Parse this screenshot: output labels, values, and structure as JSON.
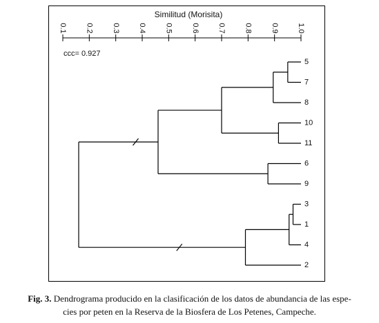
{
  "figure": {
    "axis_title": "Similitud (Morisita)",
    "ticks": [
      "0.1",
      "0.2",
      "0.3",
      "0.4",
      "0.5",
      "0.6",
      "0.7",
      "0.8",
      "0.9",
      "1.0"
    ],
    "ccc_label": "ccc= 0.927",
    "caption": {
      "label": "Fig. 3.",
      "line1": "Dendrograma producido en la clasificación de los datos de abundancia de las espe-",
      "line2": "cies por peten en la Reserva de la Biosfera de Los Petenes, Campeche."
    }
  },
  "chart_data": {
    "type": "dendrogram",
    "axis_label": "Similitud (Morisita)",
    "axis_range": [
      0.1,
      1.0
    ],
    "ccc": 0.927,
    "leaves": [
      "5",
      "7",
      "8",
      "10",
      "11",
      "6",
      "9",
      "3",
      "1",
      "4",
      "2"
    ],
    "merges": [
      {
        "id": "a",
        "children": [
          "5",
          "7"
        ],
        "similarity": 0.95
      },
      {
        "id": "b",
        "children": [
          "a",
          "8"
        ],
        "similarity": 0.895
      },
      {
        "id": "c",
        "children": [
          "10",
          "11"
        ],
        "similarity": 0.915
      },
      {
        "id": "d",
        "children": [
          "b",
          "c"
        ],
        "similarity": 0.7
      },
      {
        "id": "e",
        "children": [
          "6",
          "9"
        ],
        "similarity": 0.875
      },
      {
        "id": "f",
        "children": [
          "d",
          "e"
        ],
        "similarity": 0.46
      },
      {
        "id": "g",
        "children": [
          "3",
          "1"
        ],
        "similarity": 0.97
      },
      {
        "id": "h",
        "children": [
          "g",
          "4"
        ],
        "similarity": 0.955
      },
      {
        "id": "i",
        "children": [
          "h",
          "2"
        ],
        "similarity": 0.79
      },
      {
        "id": "j",
        "children": [
          "f",
          "i"
        ],
        "similarity": 0.16
      }
    ],
    "broken_branches": [
      "f",
      "i"
    ]
  }
}
